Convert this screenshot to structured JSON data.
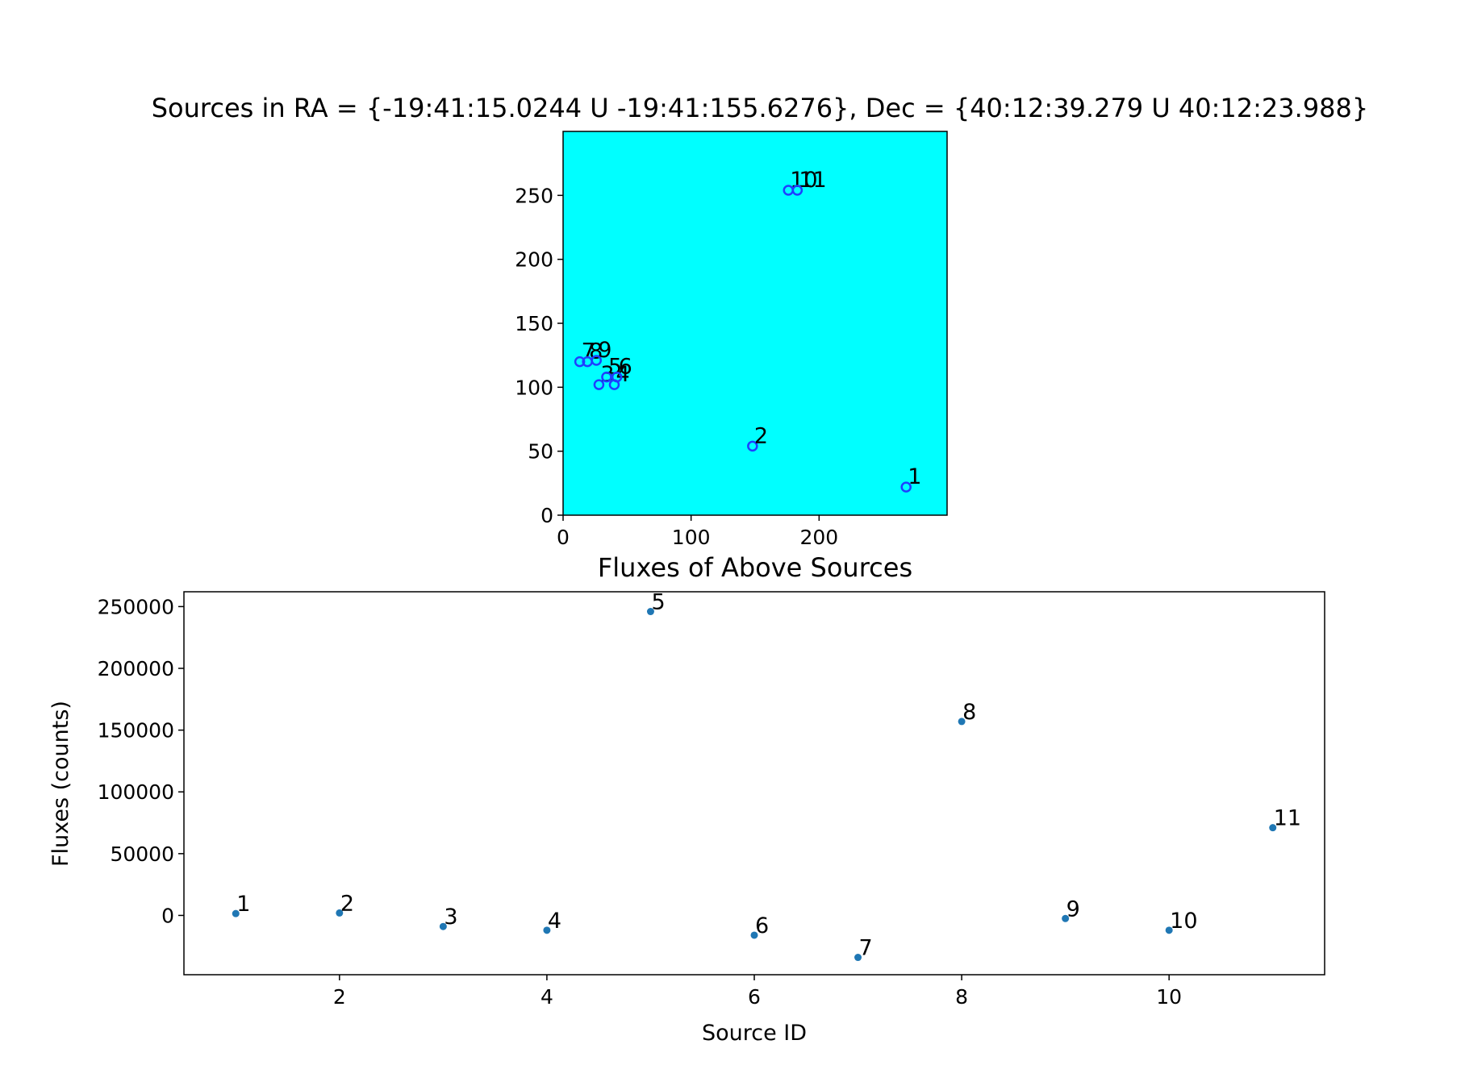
{
  "chart_data": [
    {
      "type": "image",
      "title": "Sources in RA = {-19:41:15.0244 U -19:41:155.6276}, Dec = {40:12:39.279 U 40:12:23.988}",
      "xlim": [
        0,
        300
      ],
      "ylim": [
        0,
        300
      ],
      "xticks": [
        0,
        100,
        200
      ],
      "yticks": [
        0,
        50,
        100,
        150,
        200,
        250
      ],
      "background_color": "#00ffff",
      "marker_color": "#1f3fff",
      "sources": [
        {
          "label": "1",
          "x": 268,
          "y": 22
        },
        {
          "label": "2",
          "x": 148,
          "y": 54
        },
        {
          "label": "3",
          "x": 28,
          "y": 102
        },
        {
          "label": "4",
          "x": 40,
          "y": 102
        },
        {
          "label": "5",
          "x": 34,
          "y": 108
        },
        {
          "label": "6",
          "x": 42,
          "y": 108
        },
        {
          "label": "7",
          "x": 13,
          "y": 120
        },
        {
          "label": "8",
          "x": 19,
          "y": 120
        },
        {
          "label": "9",
          "x": 26,
          "y": 121
        },
        {
          "label": "10",
          "x": 176,
          "y": 254
        },
        {
          "label": "11",
          "x": 183,
          "y": 254
        }
      ]
    },
    {
      "type": "scatter",
      "title": "Fluxes of Above Sources",
      "xlabel": "Source ID",
      "ylabel": "Fluxes (counts)",
      "xlim": [
        0.5,
        11.5
      ],
      "ylim": [
        -48000,
        262000
      ],
      "xticks": [
        2,
        4,
        6,
        8,
        10
      ],
      "yticks": [
        0,
        50000,
        100000,
        150000,
        200000,
        250000
      ],
      "color": "#1f77b4",
      "x": [
        1,
        2,
        3,
        4,
        5,
        6,
        7,
        8,
        9,
        10,
        11
      ],
      "y": [
        1500,
        2000,
        -9000,
        -12000,
        246000,
        -16000,
        -34000,
        157000,
        -2500,
        -12000,
        71000
      ],
      "point_labels": [
        "1",
        "2",
        "3",
        "4",
        "5",
        "6",
        "7",
        "8",
        "9",
        "10",
        "11"
      ]
    }
  ]
}
